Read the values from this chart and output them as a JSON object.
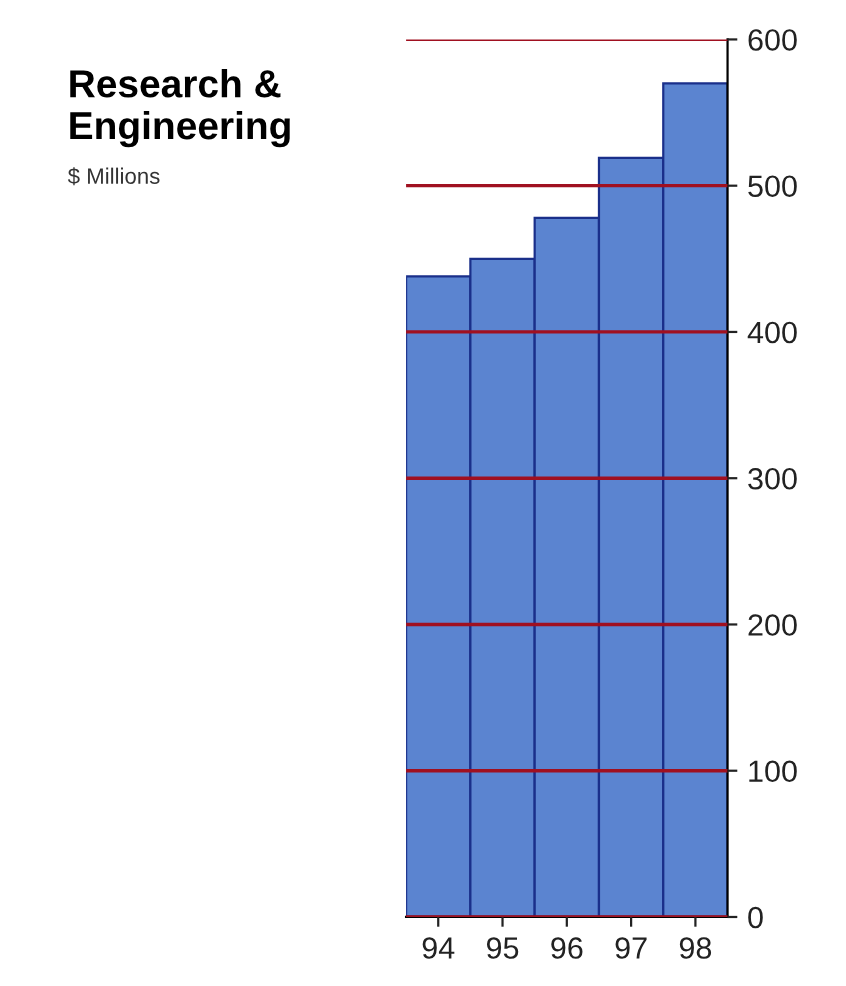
{
  "chart_data": {
    "type": "bar",
    "title": "Research &\nEngineering",
    "subtitle": "$ Millions",
    "categories": [
      "94",
      "95",
      "96",
      "97",
      "98"
    ],
    "values": [
      438,
      450,
      478,
      519,
      570
    ],
    "color": "#5b84d0",
    "ylim": [
      0,
      600
    ],
    "yticks": [
      0,
      100,
      200,
      300,
      400,
      500,
      600
    ],
    "grid": "y"
  }
}
